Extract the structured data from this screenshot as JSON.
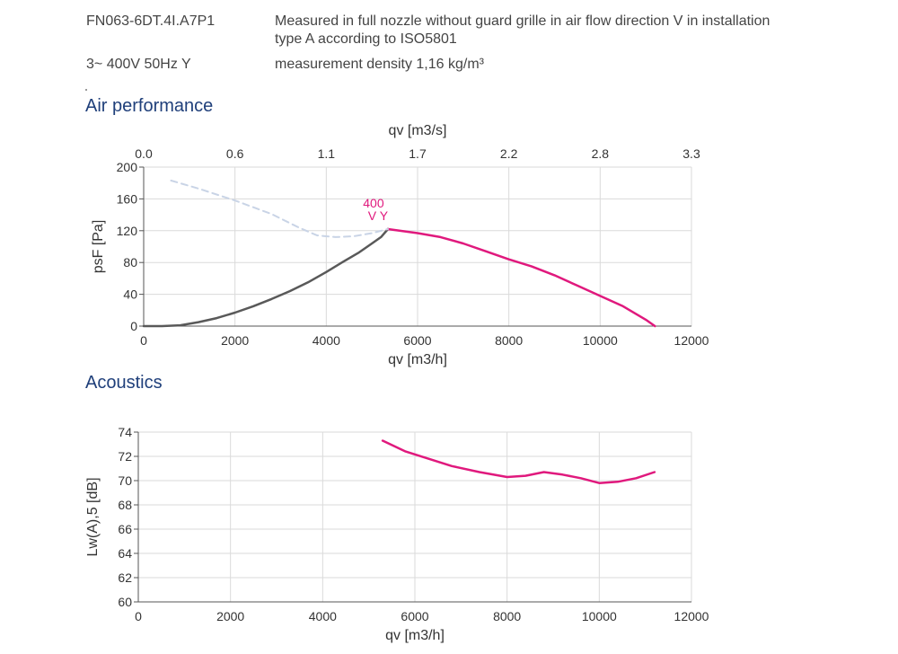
{
  "header": {
    "model": "FN063-6DT.4I.A7P1",
    "voltage": "3~ 400V 50Hz Y",
    "measurement_line1": "Measured in full nozzle without guard grille in air flow direction V in installation",
    "measurement_line2": "type A according to ISO5801",
    "density": "measurement density 1,16 kg/m³"
  },
  "sections": {
    "air": "Air performance",
    "acoustics": "Acoustics"
  },
  "chart_data": [
    {
      "type": "line",
      "xlabel": "qv [m3/h]",
      "ylabel": "psF [Pa]",
      "x2label": "qv [m3/s]",
      "xlim": [
        0,
        12000
      ],
      "ylim": [
        0,
        200
      ],
      "x_ticks": [
        "0",
        "2000",
        "4000",
        "6000",
        "8000",
        "10000",
        "12000"
      ],
      "y_ticks": [
        "0",
        "40",
        "80",
        "120",
        "160",
        "200"
      ],
      "x2_ticks": [
        "0.0",
        "0.6",
        "1.1",
        "1.7",
        "2.2",
        "2.8",
        "3.3"
      ],
      "grid": true,
      "annotations": [
        "400",
        "V Y"
      ],
      "series": [
        {
          "style": "solid",
          "color": "#595959",
          "x": [
            0,
            400,
            800,
            1200,
            1600,
            2000,
            2400,
            2800,
            3200,
            3600,
            4000,
            4400,
            4700,
            5000,
            5200,
            5350
          ],
          "y": [
            0,
            0,
            1,
            5,
            10,
            17,
            25,
            34,
            44,
            55,
            68,
            82,
            92,
            104,
            112,
            122
          ]
        },
        {
          "style": "solid",
          "color": "#e0197d",
          "x": [
            5350,
            6000,
            6500,
            7000,
            7500,
            8000,
            8500,
            9000,
            9500,
            10000,
            10500,
            11000,
            11200
          ],
          "y": [
            122,
            117,
            112,
            104,
            94,
            84,
            75,
            64,
            51,
            38,
            25,
            8,
            0
          ]
        },
        {
          "style": "dashed",
          "color": "#c9d4e6",
          "x": [
            600,
            1200,
            2000,
            2800,
            3400,
            3800,
            4200,
            4600,
            5000,
            5350
          ],
          "y": [
            183,
            173,
            158,
            141,
            124,
            114,
            112,
            113,
            117,
            122
          ]
        }
      ]
    },
    {
      "type": "line",
      "xlabel": "qv [m3/h]",
      "ylabel": "Lw(A),5 [dB]",
      "xlim": [
        0,
        12000
      ],
      "ylim": [
        60,
        74
      ],
      "x_ticks": [
        "0",
        "2000",
        "4000",
        "6000",
        "8000",
        "10000",
        "12000"
      ],
      "y_ticks": [
        "60",
        "62",
        "64",
        "66",
        "68",
        "70",
        "72",
        "74"
      ],
      "grid": true,
      "series": [
        {
          "style": "solid",
          "color": "#e0197d",
          "x": [
            5300,
            5800,
            6300,
            6800,
            7400,
            8000,
            8400,
            8800,
            9200,
            9600,
            10000,
            10400,
            10800,
            11200
          ],
          "y": [
            73.3,
            72.4,
            71.8,
            71.2,
            70.7,
            70.3,
            70.4,
            70.7,
            70.5,
            70.2,
            69.8,
            69.9,
            70.2,
            70.7
          ]
        }
      ]
    }
  ]
}
